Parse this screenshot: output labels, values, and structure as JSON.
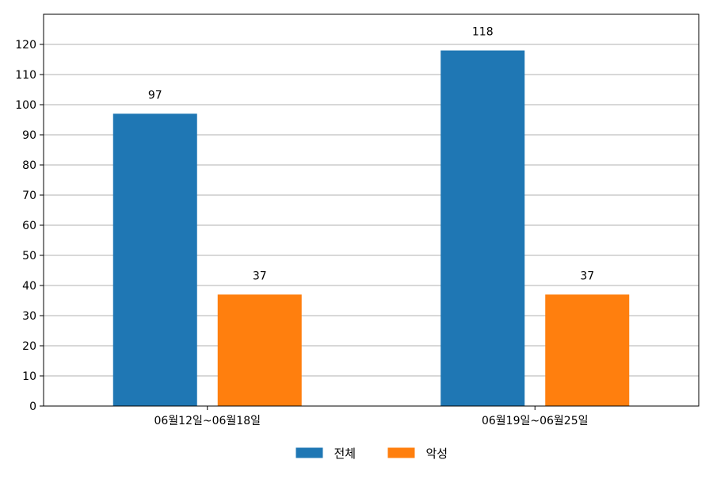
{
  "chart_data": {
    "type": "bar",
    "categories": [
      "06월12일~06월18일",
      "06월19일~06월25일"
    ],
    "series": [
      {
        "name": "전체",
        "values": [
          97,
          118
        ],
        "color": "#1f77b4"
      },
      {
        "name": "악성",
        "values": [
          37,
          37
        ],
        "color": "#ff7f0e"
      }
    ],
    "ylim": [
      0,
      130
    ],
    "yticks": [
      0,
      10,
      20,
      30,
      40,
      50,
      60,
      70,
      80,
      90,
      100,
      110,
      120
    ],
    "grid": "horizontal",
    "legend_position": "bottom-center",
    "data_labels": true
  }
}
